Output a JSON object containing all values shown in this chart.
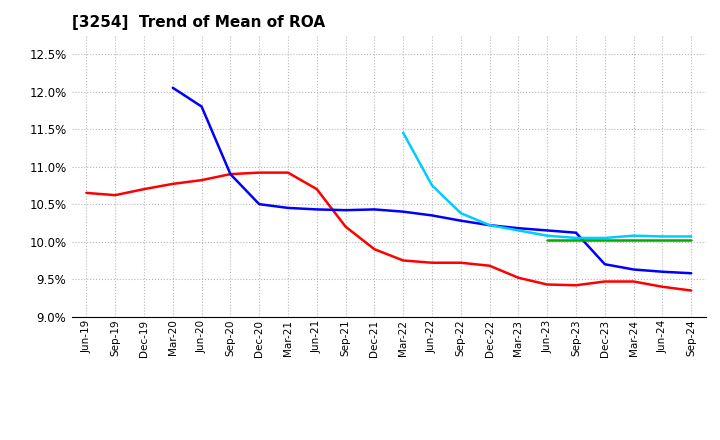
{
  "title": "[3254]  Trend of Mean of ROA",
  "ylim": [
    0.09,
    0.1275
  ],
  "yticks": [
    0.09,
    0.095,
    0.1,
    0.105,
    0.11,
    0.115,
    0.12,
    0.125
  ],
  "background_color": "#ffffff",
  "grid_color": "#b0b0b0",
  "series": {
    "3 Years": {
      "color": "#ff0000",
      "data": [
        [
          "Jun-19",
          0.1065
        ],
        [
          "Sep-19",
          0.1062
        ],
        [
          "Dec-19",
          0.107
        ],
        [
          "Mar-20",
          0.1077
        ],
        [
          "Jun-20",
          0.1082
        ],
        [
          "Sep-20",
          0.109
        ],
        [
          "Dec-20",
          0.1092
        ],
        [
          "Mar-21",
          0.1092
        ],
        [
          "Jun-21",
          0.107
        ],
        [
          "Sep-21",
          0.102
        ],
        [
          "Dec-21",
          0.099
        ],
        [
          "Mar-22",
          0.0975
        ],
        [
          "Jun-22",
          0.0972
        ],
        [
          "Sep-22",
          0.0972
        ],
        [
          "Dec-22",
          0.0968
        ],
        [
          "Mar-23",
          0.0952
        ],
        [
          "Jun-23",
          0.0943
        ],
        [
          "Sep-23",
          0.0942
        ],
        [
          "Dec-23",
          0.0947
        ],
        [
          "Mar-24",
          0.0947
        ],
        [
          "Jun-24",
          0.094
        ],
        [
          "Sep-24",
          0.0935
        ]
      ]
    },
    "5 Years": {
      "color": "#0000ff",
      "data": [
        [
          "Mar-20",
          0.1205
        ],
        [
          "Jun-20",
          0.118
        ],
        [
          "Sep-20",
          0.109
        ],
        [
          "Dec-20",
          0.105
        ],
        [
          "Mar-21",
          0.1045
        ],
        [
          "Jun-21",
          0.1043
        ],
        [
          "Sep-21",
          0.1042
        ],
        [
          "Dec-21",
          0.1043
        ],
        [
          "Mar-22",
          0.104
        ],
        [
          "Jun-22",
          0.1035
        ],
        [
          "Sep-22",
          0.1028
        ],
        [
          "Dec-22",
          0.1022
        ],
        [
          "Mar-23",
          0.1018
        ],
        [
          "Jun-23",
          0.1015
        ],
        [
          "Sep-23",
          0.1012
        ],
        [
          "Dec-23",
          0.097
        ],
        [
          "Mar-24",
          0.0963
        ],
        [
          "Jun-24",
          0.096
        ],
        [
          "Sep-24",
          0.0958
        ]
      ]
    },
    "7 Years": {
      "color": "#00ccff",
      "data": [
        [
          "Mar-22",
          0.1145
        ],
        [
          "Jun-22",
          0.1075
        ],
        [
          "Sep-22",
          0.1038
        ],
        [
          "Dec-22",
          0.1022
        ],
        [
          "Mar-23",
          0.1015
        ],
        [
          "Jun-23",
          0.1008
        ],
        [
          "Sep-23",
          0.1005
        ],
        [
          "Dec-23",
          0.1005
        ],
        [
          "Mar-24",
          0.1008
        ],
        [
          "Jun-24",
          0.1007
        ],
        [
          "Sep-24",
          0.1007
        ]
      ]
    },
    "10 Years": {
      "color": "#00aa00",
      "data": [
        [
          "Jun-23",
          0.1002
        ],
        [
          "Sep-23",
          0.1002
        ],
        [
          "Dec-23",
          0.1002
        ],
        [
          "Mar-24",
          0.1002
        ],
        [
          "Jun-24",
          0.1002
        ],
        [
          "Sep-24",
          0.1002
        ]
      ]
    }
  },
  "all_xticks": [
    "Jun-19",
    "Sep-19",
    "Dec-19",
    "Mar-20",
    "Jun-20",
    "Sep-20",
    "Dec-20",
    "Mar-21",
    "Jun-21",
    "Sep-21",
    "Dec-21",
    "Mar-22",
    "Jun-22",
    "Sep-22",
    "Dec-22",
    "Mar-23",
    "Jun-23",
    "Sep-23",
    "Dec-23",
    "Mar-24",
    "Jun-24",
    "Sep-24"
  ]
}
